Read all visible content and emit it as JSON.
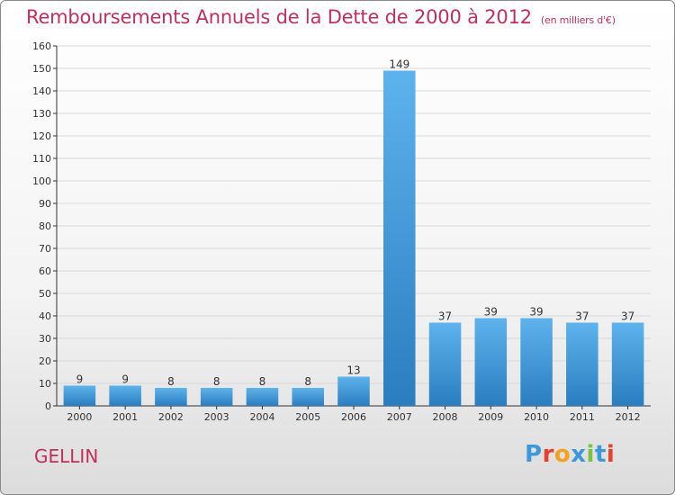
{
  "page": {
    "title": "Remboursements Annuels de la Dette de 2000 à 2012",
    "unit_note": "(en milliers d'€)",
    "commune": "GELLIN",
    "logo_text": "Proxiti"
  },
  "colors": {
    "title": "#c0305a",
    "bar_top": "#5db3ec",
    "bar_bottom": "#2a7dbf",
    "grid": "#d8d8d8",
    "axis": "#333333",
    "logo": [
      "#3a9ad9",
      "#e8402a",
      "#f2a21b",
      "#3a9ad9",
      "#7cc242",
      "#3a9ad9",
      "#e8402a"
    ]
  },
  "chart_data": {
    "type": "bar",
    "categories": [
      "2000",
      "2001",
      "2002",
      "2003",
      "2004",
      "2005",
      "2006",
      "2007",
      "2008",
      "2009",
      "2010",
      "2011",
      "2012"
    ],
    "values": [
      9,
      9,
      8,
      8,
      8,
      8,
      13,
      149,
      37,
      39,
      39,
      37,
      37
    ],
    "data_labels": [
      "9",
      "9",
      "8",
      "8",
      "8",
      "8",
      "13",
      "149",
      "37",
      "39",
      "39",
      "37",
      "37"
    ],
    "title": "Remboursements Annuels de la Dette de 2000 à 2012",
    "ylim": [
      0,
      160
    ],
    "yticks": [
      0,
      10,
      20,
      30,
      40,
      50,
      60,
      70,
      80,
      90,
      100,
      110,
      120,
      130,
      140,
      150,
      160
    ],
    "grid": true,
    "legend": "none"
  }
}
